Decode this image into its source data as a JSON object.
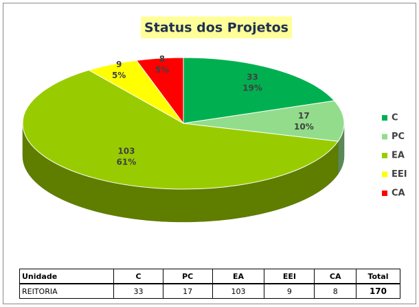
{
  "chart_data": {
    "type": "pie",
    "title": "Status dos Projetos",
    "categories": [
      "C",
      "PC",
      "EA",
      "EEI",
      "CA"
    ],
    "values": [
      33,
      17,
      103,
      9,
      8
    ],
    "percent_labels": [
      "19%",
      "10%",
      "61%",
      "5%",
      "5%"
    ],
    "colors": [
      "#00b050",
      "#92dc8c",
      "#99cc00",
      "#ffff00",
      "#ff0000"
    ],
    "legend": "right"
  },
  "table": {
    "header": [
      "Unidade",
      "C",
      "PC",
      "EA",
      "EEI",
      "CA",
      "Total"
    ],
    "rows": [
      [
        "REITORIA",
        "33",
        "17",
        "103",
        "9",
        "8",
        "170"
      ]
    ]
  }
}
